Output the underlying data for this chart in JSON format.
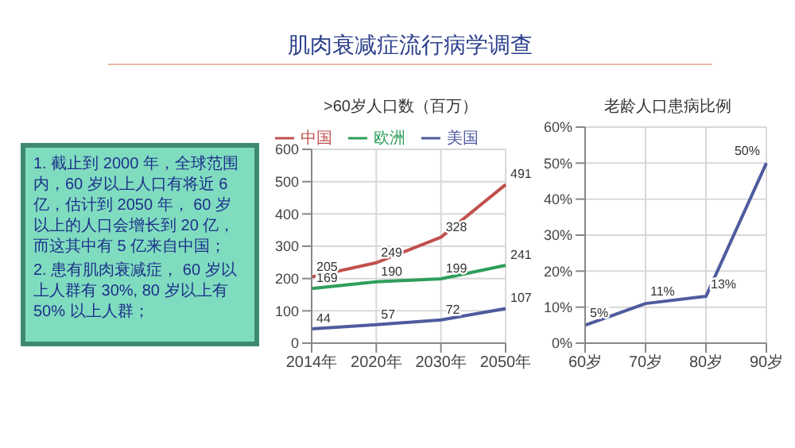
{
  "chart_data": [
    {
      "type": "other",
      "title": "肌肉衰减症流行病学调查",
      "annotations": [
        "1. 截止到 2000 年，全球范围内，60 岁以上人口有将近 6 亿，估计到 2050 年， 60 岁以上的人口会增长到 20 亿，而这其中有 5 亿来自中国；",
        "2. 患有肌肉衰减症， 60 岁以上人群有 30%, 80 岁以上有 50% 以上人群；"
      ]
    },
    {
      "type": "line",
      "title": ">60岁人口数（百万）",
      "categories": [
        "2014年",
        "2020年",
        "2030年",
        "2050年"
      ],
      "series": [
        {
          "name": "中国",
          "color": "#c0504d",
          "values": [
            205,
            249,
            328,
            491
          ]
        },
        {
          "name": "美国",
          "color": "#4f5b9e",
          "values": [
            44,
            57,
            72,
            107
          ]
        },
        {
          "name": "欧洲",
          "color": "#2e9e5b",
          "values": [
            169,
            190,
            199,
            241
          ]
        }
      ],
      "ylim": [
        0,
        600
      ],
      "yticks": [
        0,
        100,
        200,
        300,
        400,
        500,
        600
      ],
      "grid": true,
      "legend": "top",
      "data_labels": true
    },
    {
      "type": "line",
      "title": "老龄人口患病比例",
      "categories": [
        "60岁",
        "70岁",
        "80岁",
        "90岁"
      ],
      "series": [
        {
          "color": "#4f5b9e",
          "values": [
            5,
            11,
            13,
            50
          ],
          "value_labels": [
            "5%",
            "11%",
            "13%",
            "50%"
          ]
        }
      ],
      "ylim": [
        0,
        60
      ],
      "yticks": [
        {
          "value": 0,
          "label": "0%"
        },
        {
          "value": 10,
          "label": "10%"
        },
        {
          "value": 20,
          "label": "20%"
        },
        {
          "value": 30,
          "label": "30%"
        },
        {
          "value": 40,
          "label": "40%"
        },
        {
          "value": 50,
          "label": "50%"
        },
        {
          "value": 60,
          "label": "60%"
        }
      ],
      "grid": true,
      "legend": false
    }
  ]
}
